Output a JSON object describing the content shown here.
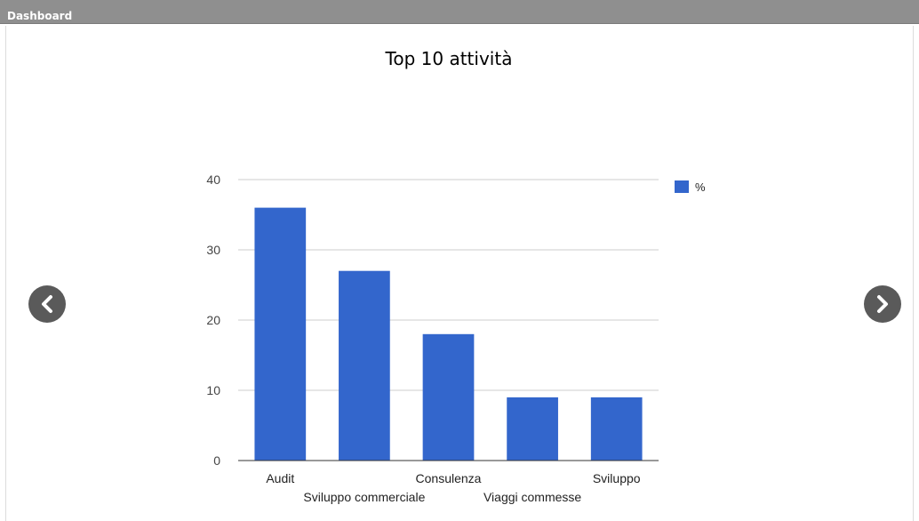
{
  "header": {
    "title": "Dashboard"
  },
  "navigation": {
    "prev_icon": "chevron-left-icon",
    "next_icon": "chevron-right-icon"
  },
  "colors": {
    "header_bg": "#8f8f8f",
    "bar": "#3366cc",
    "grid": "#cccccc",
    "axis": "#333333",
    "nav_btn": "#5a5a5a"
  },
  "chart_data": {
    "type": "bar",
    "title": "Top 10 attività",
    "categories": [
      "Audit",
      "Sviluppo commerciale",
      "Consulenza",
      "Viaggi commesse",
      "Sviluppo"
    ],
    "series": [
      {
        "name": "%",
        "values": [
          36,
          27,
          18,
          9,
          9
        ]
      }
    ],
    "yticks": [
      0,
      10,
      20,
      30,
      40
    ],
    "ylim": [
      0,
      40
    ],
    "grid": true,
    "legend": "right"
  }
}
